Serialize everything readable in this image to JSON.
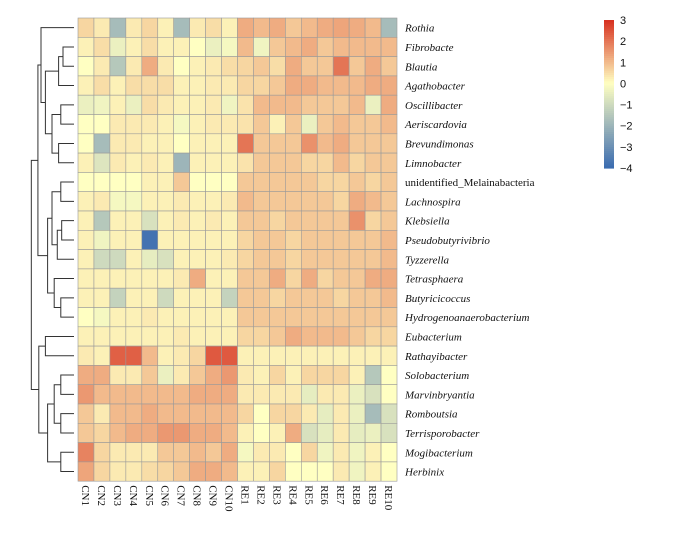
{
  "chart_data": {
    "type": "heatmap",
    "title": "",
    "columns": [
      "CN1",
      "CN2",
      "CN3",
      "CN4",
      "CN5",
      "CN6",
      "CN7",
      "CN8",
      "CN9",
      "CN10",
      "RE1",
      "RE2",
      "RE3",
      "RE4",
      "RE5",
      "RE6",
      "RE7",
      "RE8",
      "RE9",
      "RE10"
    ],
    "rows": [
      "Rothia",
      "Fibrobacte",
      "Blautia",
      "Agathobacter",
      "Oscillibacter",
      "Aeriscardovia",
      "Brevundimonas",
      "Limnobacter",
      "unidentified_Melainabacteria",
      "Lachnospira",
      "Klebsiella",
      "Pseudobutyrivibrio",
      "Tyzzerella",
      "Tetrasphaera",
      "Butyricicoccus",
      "Hydrogenoanaerobacterium",
      "Eubacterium",
      "Rathayibacter",
      "Solobacterium",
      "Marvinbryantia",
      "Romboutsia",
      "Terrisporobacter",
      "Mogibacterium",
      "Herbinix"
    ],
    "italic_rows": [
      true,
      true,
      true,
      true,
      true,
      true,
      true,
      true,
      false,
      true,
      true,
      true,
      true,
      true,
      true,
      true,
      true,
      true,
      true,
      true,
      true,
      true,
      true,
      true
    ],
    "values": [
      [
        0.6,
        0.3,
        -1.8,
        0.3,
        0.6,
        0.2,
        -1.8,
        0.3,
        0.5,
        0.2,
        1.2,
        1.0,
        1.2,
        0.8,
        1.0,
        1.2,
        1.3,
        1.2,
        1.0,
        -1.8
      ],
      [
        0.2,
        0.5,
        -0.4,
        0.2,
        0.5,
        0.2,
        0.2,
        0.0,
        -0.4,
        -0.2,
        1.0,
        -0.3,
        0.8,
        1.0,
        1.2,
        0.8,
        1.0,
        1.0,
        1.0,
        1.0
      ],
      [
        0.0,
        0.3,
        -1.5,
        0.3,
        1.2,
        0.3,
        0.0,
        0.2,
        0.3,
        0.5,
        0.6,
        0.8,
        0.5,
        1.2,
        0.8,
        0.8,
        2.0,
        0.8,
        1.2,
        0.8
      ],
      [
        0.2,
        0.5,
        0.2,
        0.5,
        0.5,
        0.5,
        0.2,
        0.2,
        0.3,
        0.3,
        0.6,
        0.6,
        0.8,
        1.2,
        1.2,
        1.0,
        1.0,
        1.0,
        1.2,
        1.2
      ],
      [
        -0.4,
        -0.3,
        0.2,
        -0.4,
        0.5,
        0.3,
        0.2,
        0.2,
        0.3,
        -0.3,
        0.4,
        1.0,
        1.0,
        1.0,
        0.8,
        0.8,
        0.8,
        1.0,
        -0.4,
        1.2
      ],
      [
        0.0,
        0.0,
        0.3,
        0.3,
        0.3,
        0.2,
        -0.2,
        0.2,
        0.3,
        0.3,
        0.4,
        0.8,
        0.2,
        0.8,
        -0.4,
        0.8,
        1.0,
        0.8,
        0.8,
        1.0
      ],
      [
        0.0,
        -1.8,
        0.3,
        0.3,
        0.2,
        0.2,
        0.0,
        0.2,
        0.2,
        0.2,
        2.0,
        0.8,
        0.8,
        0.8,
        1.6,
        1.0,
        1.2,
        0.8,
        0.8,
        0.8
      ],
      [
        0.2,
        -0.7,
        0.3,
        0.2,
        0.3,
        0.2,
        -2.0,
        0.2,
        0.2,
        0.2,
        0.4,
        0.8,
        0.8,
        0.8,
        0.6,
        0.6,
        1.0,
        0.6,
        0.8,
        0.8
      ],
      [
        0.0,
        0.0,
        0.0,
        0.0,
        0.2,
        0.2,
        0.8,
        0.0,
        0.0,
        0.0,
        0.8,
        0.8,
        0.8,
        0.8,
        0.8,
        0.6,
        0.6,
        0.8,
        0.6,
        0.8
      ],
      [
        0.2,
        0.3,
        -0.2,
        -0.2,
        0.2,
        0.2,
        0.3,
        0.2,
        0.2,
        0.3,
        1.0,
        0.8,
        0.8,
        0.8,
        0.8,
        0.8,
        0.6,
        1.2,
        1.0,
        0.8
      ],
      [
        0.2,
        -1.5,
        0.2,
        0.2,
        -0.8,
        0.2,
        0.3,
        0.2,
        0.3,
        0.2,
        0.8,
        0.8,
        0.6,
        0.8,
        0.8,
        0.8,
        0.8,
        1.6,
        0.6,
        0.8
      ],
      [
        0.2,
        -0.3,
        0.2,
        0.2,
        -3.8,
        0.2,
        0.2,
        0.2,
        0.2,
        0.2,
        0.6,
        0.8,
        0.8,
        0.6,
        0.8,
        0.8,
        0.8,
        0.8,
        0.8,
        1.0
      ],
      [
        0.2,
        -1.0,
        -1.0,
        0.2,
        -0.5,
        -0.8,
        0.2,
        0.2,
        0.2,
        0.3,
        0.6,
        0.8,
        0.8,
        0.6,
        0.8,
        0.8,
        0.8,
        0.8,
        0.8,
        1.0
      ],
      [
        0.2,
        0.2,
        0.2,
        0.2,
        0.2,
        0.2,
        0.3,
        1.2,
        0.2,
        0.2,
        0.8,
        0.8,
        1.2,
        0.6,
        1.2,
        0.6,
        0.8,
        0.8,
        1.2,
        1.2
      ],
      [
        0.2,
        0.2,
        -1.2,
        0.2,
        0.2,
        -1.0,
        0.2,
        0.2,
        0.2,
        -1.2,
        0.8,
        0.8,
        0.6,
        0.8,
        0.8,
        0.8,
        0.6,
        0.8,
        0.8,
        1.0
      ],
      [
        0.0,
        -0.2,
        0.2,
        0.2,
        0.3,
        0.2,
        0.2,
        0.2,
        0.2,
        0.2,
        0.8,
        0.8,
        0.8,
        0.8,
        0.8,
        0.8,
        0.8,
        0.8,
        0.8,
        0.8
      ],
      [
        0.2,
        0.2,
        0.2,
        0.2,
        0.2,
        0.2,
        0.3,
        0.2,
        0.2,
        0.2,
        0.6,
        0.6,
        0.8,
        1.2,
        1.0,
        1.0,
        1.0,
        0.8,
        0.6,
        0.6
      ],
      [
        0.3,
        0.2,
        2.3,
        2.3,
        1.0,
        0.2,
        0.3,
        0.6,
        2.4,
        2.4,
        0.2,
        0.2,
        0.2,
        0.2,
        0.2,
        0.2,
        0.2,
        0.2,
        0.2,
        0.2
      ],
      [
        1.2,
        1.2,
        0.3,
        0.3,
        0.8,
        -0.4,
        0.3,
        0.8,
        1.2,
        1.5,
        0.3,
        0.2,
        0.6,
        0.2,
        0.6,
        0.6,
        0.6,
        0.2,
        -1.5,
        0.0
      ],
      [
        1.5,
        1.0,
        1.0,
        1.0,
        1.0,
        1.0,
        1.0,
        1.2,
        1.2,
        1.2,
        0.3,
        0.3,
        0.3,
        0.3,
        -0.5,
        0.3,
        0.3,
        -0.4,
        -0.8,
        0.0
      ],
      [
        0.8,
        0.3,
        1.0,
        1.0,
        1.2,
        1.0,
        1.0,
        1.0,
        1.0,
        1.0,
        0.6,
        0.0,
        0.6,
        0.6,
        0.3,
        -0.5,
        0.3,
        -0.4,
        -1.8,
        -0.8
      ],
      [
        0.8,
        0.6,
        1.0,
        1.2,
        1.2,
        1.5,
        1.5,
        1.2,
        1.2,
        1.0,
        0.2,
        0.0,
        0.2,
        1.2,
        -0.8,
        -0.5,
        0.3,
        -0.5,
        -0.4,
        -0.8
      ],
      [
        1.8,
        0.6,
        0.3,
        0.3,
        0.3,
        0.8,
        0.8,
        1.0,
        0.8,
        1.2,
        -0.2,
        0.3,
        0.3,
        0.0,
        0.6,
        -0.3,
        0.3,
        -0.3,
        0.2,
        0.0
      ],
      [
        1.3,
        0.6,
        0.3,
        0.3,
        0.5,
        0.6,
        0.8,
        1.2,
        1.2,
        1.0,
        0.2,
        0.2,
        0.6,
        0.0,
        0.0,
        0.0,
        0.3,
        -0.3,
        0.2,
        0.0
      ]
    ],
    "colorbar": {
      "range": [
        -4,
        3
      ],
      "ticks": [
        3,
        2,
        1,
        0,
        -1,
        -2,
        -3,
        -4
      ],
      "tick_labels": [
        "3",
        "2",
        "1",
        "0",
        "−1",
        "−2",
        "−3",
        "−4"
      ],
      "colors": [
        "#3a6bb0",
        "#ffffc2",
        "#d7301f"
      ]
    },
    "dendrogram": "row",
    "legend_position": "top-right"
  }
}
